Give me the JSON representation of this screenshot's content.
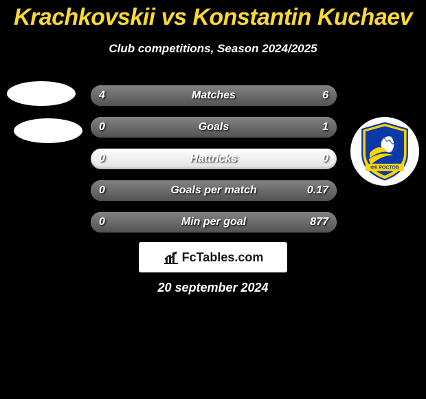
{
  "title_color": "#fdd835",
  "title": {
    "p1": "Krachkovskii",
    "vs": "vs",
    "p2": "Konstantin Kuchaev"
  },
  "subtitle": "Club competitions, Season 2024/2025",
  "stats": [
    {
      "label": "Matches",
      "l": "4",
      "r": "6",
      "lw": 40,
      "rw": 60
    },
    {
      "label": "Goals",
      "l": "0",
      "r": "1",
      "lw": 0,
      "rw": 100
    },
    {
      "label": "Hattricks",
      "l": "0",
      "r": "0",
      "lw": 0,
      "rw": 0
    },
    {
      "label": "Goals per match",
      "l": "0",
      "r": "0.17",
      "lw": 0,
      "rw": 100
    },
    {
      "label": "Min per goal",
      "l": "0",
      "r": "877",
      "lw": 0,
      "rw": 100
    }
  ],
  "bar": {
    "track_bg": "#f2f2f2",
    "fill_bg": "#6b6b6b",
    "text_color": "#ffffff"
  },
  "crest_right": {
    "shield_fill": "#0b3aa8",
    "accent_fill": "#ffd400",
    "banner_text": "ФК РОСТОВ"
  },
  "watermark": "FcTables.com",
  "date": "20 september 2024"
}
